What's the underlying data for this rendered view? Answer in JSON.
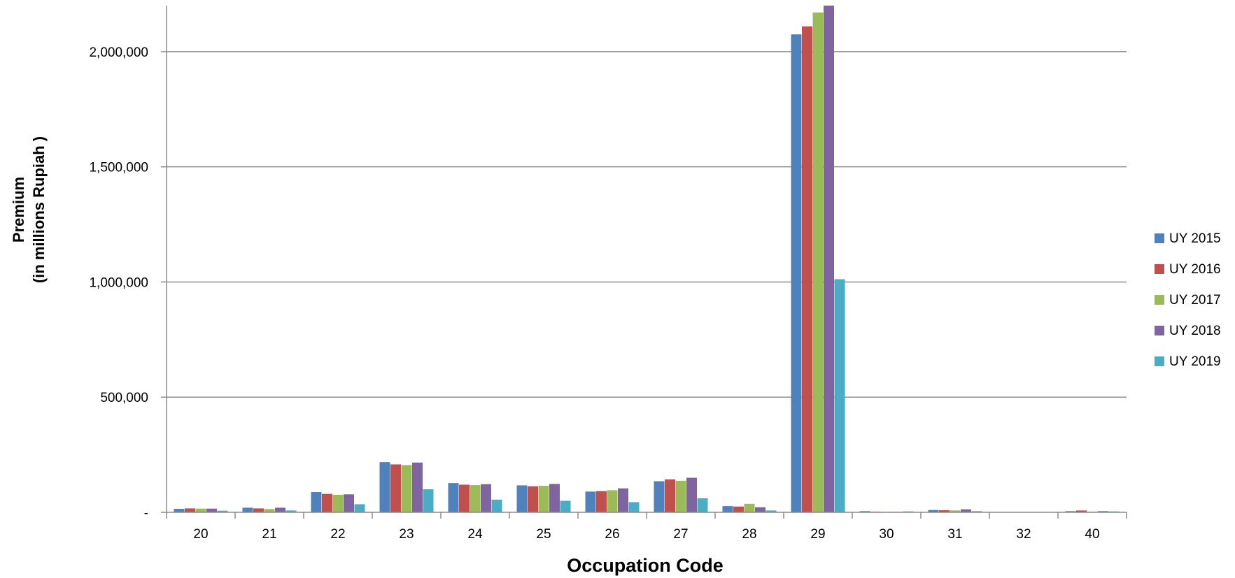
{
  "chart_data": {
    "type": "bar",
    "title": "",
    "xlabel": "Occupation Code",
    "ylabel": "Premium",
    "ylabel_line2": "(in millions Rupiah )",
    "categories": [
      "20",
      "21",
      "22",
      "23",
      "24",
      "25",
      "26",
      "27",
      "28",
      "29",
      "30",
      "31",
      "32",
      "40"
    ],
    "ylim": [
      0,
      2200000
    ],
    "yticks": [
      0,
      500000,
      1000000,
      1500000,
      2000000
    ],
    "ytick_labels": [
      "-",
      "500,000",
      "1,000,000",
      "1,500,000",
      "2,000,000"
    ],
    "grid": true,
    "legend_position": "right",
    "series": [
      {
        "name": "UY 2015",
        "color": "#4F81BD",
        "values": [
          15000,
          20000,
          88000,
          218000,
          127000,
          117000,
          90000,
          135000,
          27000,
          2075000,
          5000,
          10000,
          1000,
          5000
        ]
      },
      {
        "name": "UY 2016",
        "color": "#C0504D",
        "values": [
          17000,
          17000,
          80000,
          208000,
          120000,
          113000,
          92000,
          143000,
          25000,
          2110000,
          3000,
          9000,
          1000,
          8000
        ]
      },
      {
        "name": "UY 2017",
        "color": "#9BBB59",
        "values": [
          16000,
          14000,
          76000,
          205000,
          118000,
          115000,
          96000,
          137000,
          37000,
          2170000,
          2000,
          8000,
          1000,
          3000
        ]
      },
      {
        "name": "UY 2018",
        "color": "#8064A2",
        "values": [
          16000,
          20000,
          78000,
          216000,
          122000,
          123000,
          104000,
          150000,
          22000,
          2200000,
          2000,
          13000,
          1000,
          5000
        ]
      },
      {
        "name": "UY 2019",
        "color": "#4BACC6",
        "values": [
          7000,
          8000,
          35000,
          100000,
          55000,
          50000,
          44000,
          61000,
          8000,
          1012000,
          4000,
          5000,
          1000,
          4000
        ]
      }
    ]
  }
}
